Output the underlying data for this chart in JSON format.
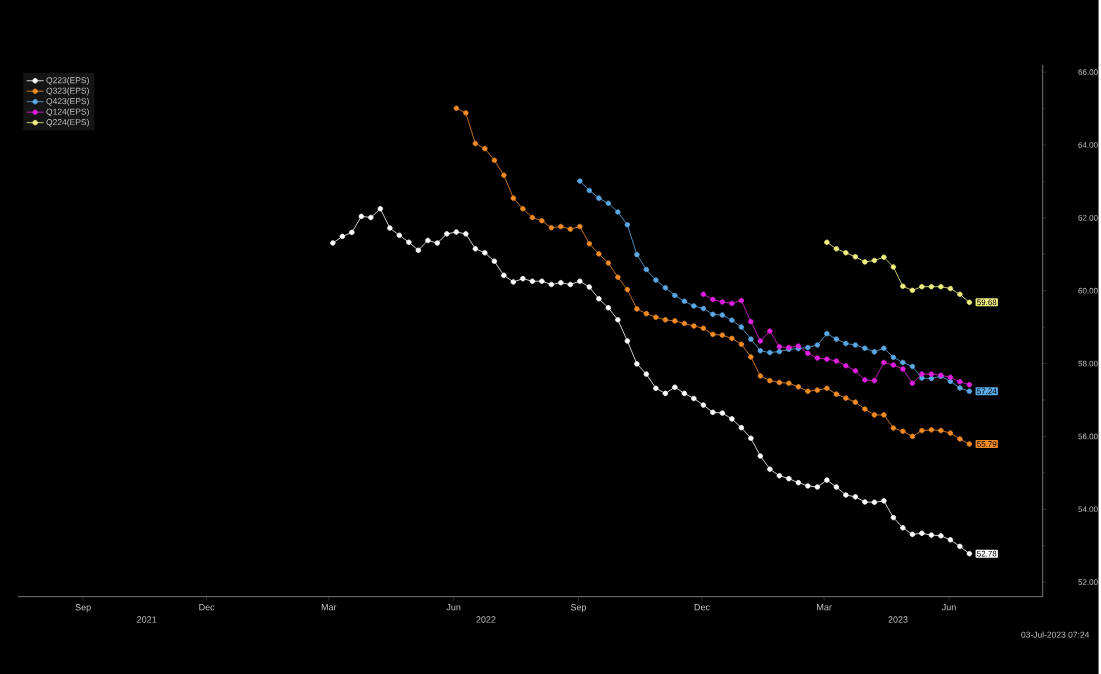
{
  "chart_data": {
    "type": "line",
    "marker": "circle",
    "legend": "top left",
    "x": [
      "2022-03-18",
      "2022-03-25",
      "2022-04-01",
      "2022-04-08",
      "2022-04-15",
      "2022-04-22",
      "2022-04-29",
      "2022-05-06",
      "2022-05-13",
      "2022-05-20",
      "2022-05-27",
      "2022-06-03",
      "2022-06-10",
      "2022-06-17",
      "2022-06-24",
      "2022-07-01",
      "2022-07-08",
      "2022-07-15",
      "2022-07-22",
      "2022-07-29",
      "2022-08-05",
      "2022-08-12",
      "2022-08-19",
      "2022-08-26",
      "2022-09-02",
      "2022-09-09",
      "2022-09-16",
      "2022-09-23",
      "2022-09-30",
      "2022-10-07",
      "2022-10-14",
      "2022-10-21",
      "2022-10-28",
      "2022-11-04",
      "2022-11-11",
      "2022-11-18",
      "2022-11-25",
      "2022-12-02",
      "2022-12-09",
      "2022-12-16",
      "2022-12-23",
      "2022-12-30",
      "2023-01-06",
      "2023-01-13",
      "2023-01-20",
      "2023-01-27",
      "2023-02-03",
      "2023-02-10",
      "2023-02-17",
      "2023-02-24",
      "2023-03-03",
      "2023-03-10",
      "2023-03-17",
      "2023-03-24",
      "2023-03-31",
      "2023-04-07",
      "2023-04-14",
      "2023-04-21",
      "2023-04-28",
      "2023-05-05",
      "2023-05-12",
      "2023-05-19",
      "2023-05-26",
      "2023-06-02",
      "2023-06-09",
      "2023-06-16",
      "2023-06-23",
      "2023-06-30"
    ],
    "series": [
      {
        "name": "Q223(EPS)",
        "color": "#ffffff",
        "values": [
          61.31,
          61.49,
          61.6,
          62.04,
          62.01,
          62.25,
          61.72,
          61.52,
          61.33,
          61.11,
          61.38,
          61.31,
          61.56,
          61.61,
          61.56,
          61.15,
          61.04,
          60.81,
          60.42,
          60.24,
          60.33,
          60.26,
          60.26,
          60.17,
          60.22,
          60.17,
          60.26,
          60.1,
          59.78,
          59.53,
          59.2,
          58.62,
          57.99,
          57.71,
          57.32,
          57.18,
          57.35,
          57.18,
          57.04,
          56.86,
          56.66,
          56.64,
          56.48,
          56.24,
          55.95,
          55.46,
          55.1,
          54.92,
          54.84,
          54.73,
          54.64,
          54.61,
          54.8,
          54.61,
          54.39,
          54.34,
          54.2,
          54.19,
          54.23,
          53.77,
          53.49,
          53.31,
          53.34,
          53.29,
          53.27,
          53.16,
          52.98,
          52.78
        ],
        "value_labels": [
          null,
          null,
          null,
          null,
          null,
          null,
          null,
          null,
          null,
          null,
          null,
          null,
          null,
          null,
          null,
          null,
          null,
          null,
          null,
          null,
          null,
          null,
          null,
          null,
          null,
          null,
          null,
          null,
          null,
          null,
          null,
          null,
          null,
          null,
          null,
          null,
          null,
          null,
          null,
          null,
          null,
          null,
          null,
          null,
          null,
          null,
          null,
          null,
          null,
          null,
          null,
          null,
          null,
          null,
          null,
          null,
          null,
          null,
          null,
          null,
          null,
          null,
          null,
          null,
          null,
          null,
          null,
          "52.78"
        ]
      },
      {
        "name": "Q323(EPS)",
        "color": "#f08a24",
        "values": [
          null,
          null,
          null,
          null,
          null,
          null,
          null,
          null,
          null,
          null,
          null,
          null,
          null,
          65.01,
          64.88,
          64.04,
          63.9,
          63.58,
          63.17,
          62.54,
          62.25,
          62.01,
          61.92,
          61.73,
          61.76,
          61.69,
          61.76,
          61.29,
          61.01,
          60.76,
          60.37,
          60.03,
          59.5,
          59.37,
          59.27,
          59.2,
          59.17,
          59.1,
          59.03,
          58.97,
          58.8,
          58.78,
          58.69,
          58.53,
          58.18,
          57.66,
          57.53,
          57.48,
          57.46,
          57.36,
          57.24,
          57.27,
          57.32,
          57.16,
          57.05,
          56.94,
          56.75,
          56.59,
          56.59,
          56.23,
          56.14,
          56.0,
          56.16,
          56.18,
          56.16,
          56.09,
          55.93,
          55.79
        ],
        "value_labels": [
          null,
          null,
          null,
          null,
          null,
          null,
          null,
          null,
          null,
          null,
          null,
          null,
          null,
          null,
          null,
          null,
          null,
          null,
          null,
          null,
          null,
          null,
          null,
          null,
          null,
          null,
          null,
          null,
          null,
          null,
          null,
          null,
          null,
          null,
          null,
          null,
          null,
          null,
          null,
          null,
          null,
          null,
          null,
          null,
          null,
          null,
          null,
          null,
          null,
          null,
          null,
          null,
          null,
          null,
          null,
          null,
          null,
          null,
          null,
          null,
          null,
          null,
          null,
          null,
          null,
          null,
          null,
          "55.79"
        ]
      },
      {
        "name": "Q423(EPS)",
        "color": "#5aa9e6",
        "values": [
          null,
          null,
          null,
          null,
          null,
          null,
          null,
          null,
          null,
          null,
          null,
          null,
          null,
          null,
          null,
          null,
          null,
          null,
          null,
          null,
          null,
          null,
          null,
          null,
          null,
          null,
          63.01,
          62.75,
          62.54,
          62.4,
          62.16,
          61.81,
          60.99,
          60.58,
          60.29,
          60.08,
          59.87,
          59.71,
          59.58,
          59.51,
          59.35,
          59.33,
          59.19,
          59.0,
          58.67,
          58.35,
          58.3,
          58.33,
          58.39,
          58.41,
          58.44,
          58.51,
          58.82,
          58.67,
          58.55,
          58.51,
          58.42,
          58.32,
          58.42,
          58.17,
          58.03,
          57.92,
          57.6,
          57.59,
          57.65,
          57.51,
          57.33,
          57.24
        ],
        "value_labels": [
          null,
          null,
          null,
          null,
          null,
          null,
          null,
          null,
          null,
          null,
          null,
          null,
          null,
          null,
          null,
          null,
          null,
          null,
          null,
          null,
          null,
          null,
          null,
          null,
          null,
          null,
          null,
          null,
          null,
          null,
          null,
          null,
          null,
          null,
          null,
          null,
          null,
          null,
          null,
          null,
          null,
          null,
          null,
          null,
          null,
          null,
          null,
          null,
          null,
          null,
          null,
          null,
          null,
          null,
          null,
          null,
          null,
          null,
          null,
          null,
          null,
          null,
          null,
          null,
          null,
          null,
          null,
          "57.24"
        ]
      },
      {
        "name": "Q124(EPS)",
        "color": "#e020e0",
        "values": [
          null,
          null,
          null,
          null,
          null,
          null,
          null,
          null,
          null,
          null,
          null,
          null,
          null,
          null,
          null,
          null,
          null,
          null,
          null,
          null,
          null,
          null,
          null,
          null,
          null,
          null,
          null,
          null,
          null,
          null,
          null,
          null,
          null,
          null,
          null,
          null,
          null,
          null,
          null,
          59.9,
          59.76,
          59.69,
          59.65,
          59.73,
          59.15,
          58.62,
          58.89,
          58.46,
          58.44,
          58.48,
          58.28,
          58.15,
          58.12,
          58.07,
          57.94,
          57.8,
          57.55,
          57.53,
          58.03,
          57.96,
          57.85,
          57.46,
          57.71,
          57.71,
          57.68,
          57.62,
          57.5,
          57.42
        ]
      },
      {
        "name": "Q224(EPS)",
        "color": "#f0f080",
        "values": [
          null,
          null,
          null,
          null,
          null,
          null,
          null,
          null,
          null,
          null,
          null,
          null,
          null,
          null,
          null,
          null,
          null,
          null,
          null,
          null,
          null,
          null,
          null,
          null,
          null,
          null,
          null,
          null,
          null,
          null,
          null,
          null,
          null,
          null,
          null,
          null,
          null,
          null,
          null,
          null,
          null,
          null,
          null,
          null,
          null,
          null,
          null,
          null,
          null,
          null,
          null,
          null,
          61.33,
          61.15,
          61.04,
          60.93,
          60.79,
          60.83,
          60.92,
          60.65,
          60.12,
          60.01,
          60.11,
          60.11,
          60.11,
          60.06,
          59.9,
          59.68
        ],
        "value_labels": [
          null,
          null,
          null,
          null,
          null,
          null,
          null,
          null,
          null,
          null,
          null,
          null,
          null,
          null,
          null,
          null,
          null,
          null,
          null,
          null,
          null,
          null,
          null,
          null,
          null,
          null,
          null,
          null,
          null,
          null,
          null,
          null,
          null,
          null,
          null,
          null,
          null,
          null,
          null,
          null,
          null,
          null,
          null,
          null,
          null,
          null,
          null,
          null,
          null,
          null,
          null,
          null,
          null,
          null,
          null,
          null,
          null,
          null,
          null,
          null,
          null,
          null,
          null,
          null,
          null,
          null,
          null,
          "59.68"
        ]
      }
    ],
    "xlim": [
      "2021-07-29",
      "2023-08-23"
    ],
    "xticks": [
      {
        "value": "2021-09-15",
        "label": "Sep"
      },
      {
        "value": "2021-12-15",
        "label": "Dec"
      },
      {
        "value": "2022-03-15",
        "label": "Mar"
      },
      {
        "value": "2022-06-15",
        "label": "Jun"
      },
      {
        "value": "2022-09-15",
        "label": "Sep"
      },
      {
        "value": "2022-12-15",
        "label": "Dec"
      },
      {
        "value": "2023-03-15",
        "label": "Mar"
      },
      {
        "value": "2023-06-15",
        "label": "Jun"
      }
    ],
    "ylim": [
      51.6,
      66.2
    ],
    "yticks": [
      {
        "value": 52,
        "label": "52.00"
      },
      {
        "value": 54,
        "label": "54.00"
      },
      {
        "value": 56,
        "label": "56.00"
      },
      {
        "value": 58,
        "label": "58.00"
      },
      {
        "value": 60,
        "label": "60.00"
      },
      {
        "value": 62,
        "label": "62.00"
      },
      {
        "value": 64,
        "label": "64.00"
      },
      {
        "value": 66,
        "label": "66.00"
      }
    ],
    "annotations": [
      "2021",
      "2022",
      "2023",
      "03-Jul-2023 07:24"
    ]
  }
}
